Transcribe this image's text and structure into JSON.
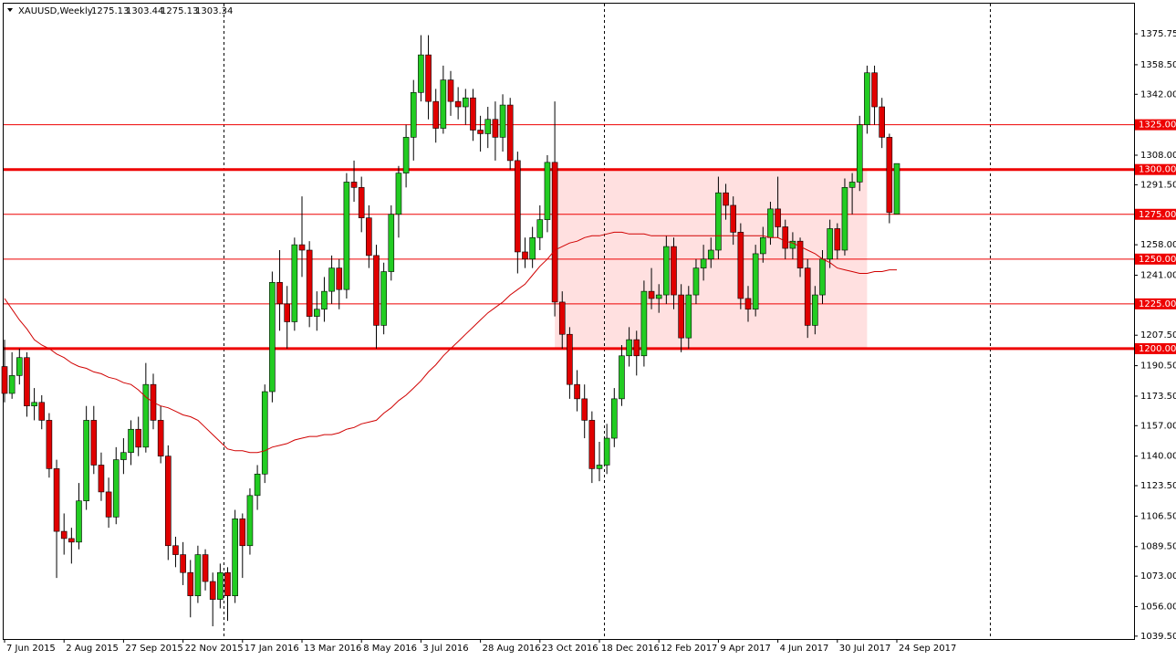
{
  "chart_data": {
    "type": "candlestick",
    "symbol": "XAUUSD,Weekly",
    "header_ohlc": [
      "1275.13",
      "1303.44",
      "1275.13",
      "1303.34"
    ],
    "categories": [
      "7 Jun 2015",
      null,
      null,
      null,
      null,
      null,
      null,
      null,
      "2 Aug 2015",
      null,
      null,
      null,
      null,
      null,
      null,
      null,
      "27 Sep 2015",
      null,
      null,
      null,
      null,
      null,
      null,
      null,
      "22 Nov 2015",
      null,
      null,
      null,
      null,
      null,
      null,
      null,
      "17 Jan 2016",
      null,
      null,
      null,
      null,
      null,
      null,
      null,
      "13 Mar 2016",
      null,
      null,
      null,
      null,
      null,
      null,
      null,
      "8 May 2016",
      null,
      null,
      null,
      null,
      null,
      null,
      null,
      "3 Jul 2016",
      null,
      null,
      null,
      null,
      null,
      null,
      null,
      "28 Aug 2016",
      null,
      null,
      null,
      null,
      null,
      null,
      null,
      "23 Oct 2016",
      null,
      null,
      null,
      null,
      null,
      null,
      null,
      "18 Dec 2016",
      null,
      null,
      null,
      null,
      null,
      null,
      null,
      "12 Feb 2017",
      null,
      null,
      null,
      null,
      null,
      null,
      null,
      "9 Apr 2017",
      null,
      null,
      null,
      null,
      null,
      null,
      null,
      "4 Jun 2017",
      null,
      null,
      null,
      null,
      null,
      null,
      null,
      "30 Jul 2017",
      null,
      null,
      null,
      null,
      null,
      null,
      null,
      "24 Sep 2017"
    ],
    "ohlc": [
      [
        1190,
        1205,
        1170,
        1175
      ],
      [
        1175,
        1198,
        1172,
        1185
      ],
      [
        1185,
        1200,
        1180,
        1195
      ],
      [
        1195,
        1198,
        1162,
        1168
      ],
      [
        1168,
        1178,
        1160,
        1170
      ],
      [
        1170,
        1174,
        1155,
        1160
      ],
      [
        1160,
        1164,
        1128,
        1133
      ],
      [
        1133,
        1138,
        1072,
        1098
      ],
      [
        1098,
        1108,
        1085,
        1094
      ],
      [
        1094,
        1100,
        1080,
        1092
      ],
      [
        1092,
        1125,
        1088,
        1115
      ],
      [
        1115,
        1168,
        1110,
        1160
      ],
      [
        1160,
        1168,
        1130,
        1135
      ],
      [
        1135,
        1142,
        1115,
        1120
      ],
      [
        1120,
        1128,
        1100,
        1106
      ],
      [
        1106,
        1145,
        1102,
        1138
      ],
      [
        1138,
        1150,
        1130,
        1142
      ],
      [
        1142,
        1160,
        1135,
        1155
      ],
      [
        1155,
        1162,
        1140,
        1145
      ],
      [
        1145,
        1192,
        1142,
        1180
      ],
      [
        1180,
        1186,
        1155,
        1160
      ],
      [
        1160,
        1168,
        1136,
        1140
      ],
      [
        1140,
        1146,
        1082,
        1090
      ],
      [
        1090,
        1095,
        1078,
        1085
      ],
      [
        1085,
        1092,
        1068,
        1075
      ],
      [
        1075,
        1082,
        1050,
        1062
      ],
      [
        1062,
        1090,
        1058,
        1085
      ],
      [
        1085,
        1088,
        1065,
        1070
      ],
      [
        1070,
        1075,
        1045,
        1060
      ],
      [
        1060,
        1080,
        1055,
        1075
      ],
      [
        1075,
        1078,
        1048,
        1062
      ],
      [
        1062,
        1110,
        1058,
        1105
      ],
      [
        1105,
        1108,
        1072,
        1090
      ],
      [
        1090,
        1122,
        1085,
        1118
      ],
      [
        1118,
        1135,
        1110,
        1130
      ],
      [
        1130,
        1180,
        1125,
        1176
      ],
      [
        1176,
        1243,
        1170,
        1237
      ],
      [
        1237,
        1255,
        1210,
        1225
      ],
      [
        1225,
        1235,
        1200,
        1215
      ],
      [
        1215,
        1262,
        1210,
        1258
      ],
      [
        1258,
        1285,
        1240,
        1255
      ],
      [
        1255,
        1260,
        1212,
        1218
      ],
      [
        1218,
        1232,
        1210,
        1222
      ],
      [
        1222,
        1240,
        1215,
        1232
      ],
      [
        1232,
        1252,
        1225,
        1245
      ],
      [
        1245,
        1250,
        1222,
        1233
      ],
      [
        1233,
        1298,
        1228,
        1293
      ],
      [
        1293,
        1305,
        1282,
        1290
      ],
      [
        1290,
        1296,
        1265,
        1273
      ],
      [
        1273,
        1280,
        1245,
        1252
      ],
      [
        1252,
        1258,
        1200,
        1213
      ],
      [
        1213,
        1248,
        1208,
        1243
      ],
      [
        1243,
        1280,
        1238,
        1275
      ],
      [
        1275,
        1302,
        1262,
        1298
      ],
      [
        1298,
        1325,
        1290,
        1318
      ],
      [
        1318,
        1350,
        1305,
        1343
      ],
      [
        1343,
        1375,
        1338,
        1364
      ],
      [
        1364,
        1375,
        1328,
        1338
      ],
      [
        1338,
        1345,
        1315,
        1323
      ],
      [
        1323,
        1358,
        1320,
        1350
      ],
      [
        1350,
        1355,
        1330,
        1338
      ],
      [
        1338,
        1346,
        1328,
        1335
      ],
      [
        1335,
        1345,
        1325,
        1340
      ],
      [
        1340,
        1345,
        1316,
        1322
      ],
      [
        1322,
        1330,
        1310,
        1320
      ],
      [
        1320,
        1335,
        1312,
        1328
      ],
      [
        1328,
        1338,
        1305,
        1318
      ],
      [
        1318,
        1342,
        1310,
        1336
      ],
      [
        1336,
        1340,
        1300,
        1305
      ],
      [
        1305,
        1310,
        1242,
        1254
      ],
      [
        1254,
        1262,
        1245,
        1250
      ],
      [
        1250,
        1268,
        1245,
        1262
      ],
      [
        1262,
        1280,
        1255,
        1272
      ],
      [
        1272,
        1308,
        1265,
        1304
      ],
      [
        1304,
        1338,
        1218,
        1226
      ],
      [
        1226,
        1232,
        1200,
        1208
      ],
      [
        1208,
        1212,
        1172,
        1180
      ],
      [
        1180,
        1188,
        1165,
        1172
      ],
      [
        1172,
        1180,
        1150,
        1160
      ],
      [
        1160,
        1165,
        1125,
        1133
      ],
      [
        1133,
        1148,
        1126,
        1135
      ],
      [
        1135,
        1158,
        1130,
        1150
      ],
      [
        1150,
        1178,
        1145,
        1172
      ],
      [
        1172,
        1202,
        1168,
        1196
      ],
      [
        1196,
        1212,
        1190,
        1205
      ],
      [
        1205,
        1210,
        1185,
        1196
      ],
      [
        1196,
        1238,
        1190,
        1232
      ],
      [
        1232,
        1245,
        1222,
        1228
      ],
      [
        1228,
        1236,
        1220,
        1230
      ],
      [
        1230,
        1263,
        1225,
        1257
      ],
      [
        1257,
        1262,
        1222,
        1230
      ],
      [
        1230,
        1236,
        1198,
        1206
      ],
      [
        1206,
        1235,
        1200,
        1230
      ],
      [
        1230,
        1250,
        1225,
        1245
      ],
      [
        1245,
        1258,
        1238,
        1250
      ],
      [
        1250,
        1262,
        1245,
        1255
      ],
      [
        1255,
        1296,
        1250,
        1287
      ],
      [
        1287,
        1292,
        1272,
        1280
      ],
      [
        1280,
        1285,
        1258,
        1265
      ],
      [
        1265,
        1270,
        1222,
        1228
      ],
      [
        1228,
        1235,
        1215,
        1222
      ],
      [
        1222,
        1258,
        1218,
        1253
      ],
      [
        1253,
        1268,
        1248,
        1262
      ],
      [
        1262,
        1282,
        1258,
        1278
      ],
      [
        1278,
        1296,
        1262,
        1268
      ],
      [
        1268,
        1272,
        1250,
        1256
      ],
      [
        1256,
        1265,
        1250,
        1260
      ],
      [
        1260,
        1262,
        1240,
        1245
      ],
      [
        1245,
        1250,
        1206,
        1213
      ],
      [
        1213,
        1235,
        1208,
        1230
      ],
      [
        1230,
        1255,
        1225,
        1250
      ],
      [
        1250,
        1272,
        1245,
        1267
      ],
      [
        1267,
        1270,
        1250,
        1255
      ],
      [
        1255,
        1295,
        1252,
        1290
      ],
      [
        1290,
        1298,
        1275,
        1293
      ],
      [
        1293,
        1330,
        1288,
        1325
      ],
      [
        1325,
        1358,
        1320,
        1354
      ],
      [
        1354,
        1358,
        1325,
        1335
      ],
      [
        1335,
        1340,
        1312,
        1318
      ],
      [
        1318,
        1320,
        1270,
        1276
      ],
      [
        1275.13,
        1303.44,
        1275.13,
        1303.34
      ]
    ],
    "bull_color": "#22cc22",
    "bear_color": "#e00000",
    "ma": {
      "color": "#d00000",
      "values": [
        1228,
        1222,
        1216,
        1211,
        1205,
        1202,
        1200,
        1197,
        1195,
        1192,
        1190,
        1189,
        1187,
        1186,
        1184,
        1183,
        1181,
        1180,
        1177,
        1173,
        1170,
        1168,
        1167,
        1165,
        1163,
        1162,
        1160,
        1156,
        1152,
        1148,
        1144,
        1143,
        1143,
        1142,
        1142,
        1143,
        1145,
        1146,
        1147,
        1149,
        1150,
        1151,
        1151,
        1152,
        1152,
        1153,
        1155,
        1156,
        1158,
        1159,
        1160,
        1164,
        1167,
        1171,
        1174,
        1178,
        1182,
        1187,
        1191,
        1196,
        1200,
        1204,
        1208,
        1212,
        1216,
        1220,
        1223,
        1226,
        1230,
        1233,
        1236,
        1241,
        1246,
        1250,
        1255,
        1257,
        1259,
        1260,
        1262,
        1263,
        1263,
        1264,
        1265,
        1265,
        1264,
        1264,
        1264,
        1263,
        1263,
        1263,
        1263,
        1263,
        1263,
        1263,
        1263,
        1263,
        1263,
        1263,
        1263,
        1263,
        1263,
        1263,
        1263,
        1262,
        1262,
        1260,
        1259,
        1257,
        1255,
        1253,
        1250,
        1248,
        1245,
        1244,
        1243,
        1242,
        1242,
        1243,
        1243,
        1244,
        1244
      ]
    },
    "levels": [
      {
        "value": 1325,
        "label": "1325.00",
        "bold": false
      },
      {
        "value": 1300,
        "label": "1300.00",
        "bold": true
      },
      {
        "value": 1275,
        "label": "1275.00",
        "bold": false
      },
      {
        "value": 1250,
        "label": "1250.00",
        "bold": false
      },
      {
        "value": 1225,
        "label": "1225.00",
        "bold": false
      },
      {
        "value": 1200,
        "label": "1200.00",
        "bold": true
      }
    ],
    "level_color": "#ee0000",
    "zone": {
      "x": [
        74,
        116
      ],
      "y": [
        1200,
        1300
      ],
      "color": "#ffe0e0"
    },
    "ylim": [
      1037.9,
      1392.6
    ],
    "yticks": [
      {
        "value": 1375.75,
        "label": "1375.75"
      },
      {
        "value": 1358.5,
        "label": "1358.50"
      },
      {
        "value": 1342,
        "label": "1342.00"
      },
      {
        "value": 1308,
        "label": "1308.00"
      },
      {
        "value": 1291.5,
        "label": "1291.50"
      },
      {
        "value": 1258,
        "label": "1258.00"
      },
      {
        "value": 1241,
        "label": "1241.00"
      },
      {
        "value": 1207.5,
        "label": "1207.50"
      },
      {
        "value": 1190.5,
        "label": "1190.50"
      },
      {
        "value": 1173.5,
        "label": "1173.50"
      },
      {
        "value": 1157,
        "label": "1157.00"
      },
      {
        "value": 1140,
        "label": "1140.00"
      },
      {
        "value": 1123.5,
        "label": "1123.50"
      },
      {
        "value": 1106.5,
        "label": "1106.50"
      },
      {
        "value": 1089.5,
        "label": "1089.50"
      },
      {
        "value": 1073,
        "label": "1073.00"
      },
      {
        "value": 1056,
        "label": "1056.00"
      },
      {
        "value": 1039.5,
        "label": "1039.50"
      }
    ]
  }
}
